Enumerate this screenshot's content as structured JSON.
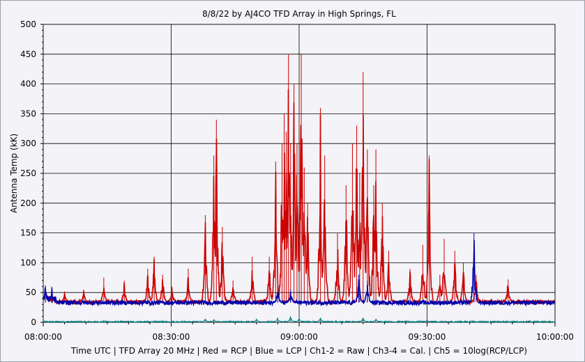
{
  "chart_data": {
    "type": "line",
    "title": "8/8/22  by  AJ4CO TFD Array  in  High Springs, FL",
    "ylabel": "Antenna Temp (kK)",
    "xlabel": "Time UTC | TFD Array 20 MHz | Red = RCP | Blue = LCP | Ch1-2 = Raw | Ch3-4 = Cal. | Ch5 = 10log(RCP/LCP)",
    "ylim": [
      0,
      500
    ],
    "yticks": [
      "0",
      "50",
      "100",
      "150",
      "200",
      "250",
      "300",
      "350",
      "400",
      "450",
      "500"
    ],
    "xlim_minutes": [
      0,
      120
    ],
    "xticks": [
      "08:00:00",
      "08:30:00",
      "09:00:00",
      "09:30:00",
      "10:00:00"
    ],
    "grid": true,
    "background": "#f4f3f7",
    "colors": {
      "rcp": "#cc0000",
      "lcp": "#0000aa",
      "ratio": "#008080",
      "grid": "#000000"
    },
    "series": [
      {
        "name": "Red = RCP",
        "color": "#cc0000",
        "baseline": 34,
        "spikes": [
          [
            0.5,
            60
          ],
          [
            5.0,
            52
          ],
          [
            9.5,
            55
          ],
          [
            14.2,
            75
          ],
          [
            19.0,
            70
          ],
          [
            24.5,
            90
          ],
          [
            26.0,
            110
          ],
          [
            28.0,
            80
          ],
          [
            30.2,
            60
          ],
          [
            34.0,
            90
          ],
          [
            38.0,
            180
          ],
          [
            40.0,
            280
          ],
          [
            40.6,
            340
          ],
          [
            42.0,
            160
          ],
          [
            44.5,
            70
          ],
          [
            49.0,
            110
          ],
          [
            53.0,
            110
          ],
          [
            54.5,
            270
          ],
          [
            56.0,
            300
          ],
          [
            56.5,
            350
          ],
          [
            57.0,
            320
          ],
          [
            57.5,
            450
          ],
          [
            58.0,
            300
          ],
          [
            58.8,
            400
          ],
          [
            59.5,
            300
          ],
          [
            60.5,
            450
          ],
          [
            61.2,
            260
          ],
          [
            62.0,
            200
          ],
          [
            65.0,
            360
          ],
          [
            66.0,
            280
          ],
          [
            69.0,
            150
          ],
          [
            71.0,
            230
          ],
          [
            72.5,
            300
          ],
          [
            73.5,
            330
          ],
          [
            74.2,
            250
          ],
          [
            75.0,
            420
          ],
          [
            76.0,
            290
          ],
          [
            77.5,
            230
          ],
          [
            78.0,
            290
          ],
          [
            79.5,
            200
          ],
          [
            81.0,
            120
          ],
          [
            86.0,
            90
          ],
          [
            89.0,
            130
          ],
          [
            90.5,
            280
          ],
          [
            93.0,
            80
          ],
          [
            94.0,
            140
          ],
          [
            96.5,
            120
          ],
          [
            98.5,
            100
          ],
          [
            101.5,
            80
          ],
          [
            109.0,
            72
          ]
        ]
      },
      {
        "name": "Blue = LCP",
        "color": "#0000aa",
        "baseline": 33,
        "spikes": [
          [
            0.5,
            62
          ],
          [
            2.0,
            60
          ],
          [
            55.0,
            60
          ],
          [
            58.0,
            55
          ],
          [
            74.0,
            80
          ],
          [
            76.0,
            70
          ],
          [
            101.0,
            150
          ]
        ]
      },
      {
        "name": "Ch5 = 10log(RCP/LCP)",
        "color": "#008080",
        "baseline": 1,
        "spikes": [
          [
            38.0,
            6
          ],
          [
            40.0,
            5
          ],
          [
            50.0,
            6
          ],
          [
            55.0,
            8
          ],
          [
            58.0,
            10
          ],
          [
            60.0,
            7
          ],
          [
            65.0,
            8
          ],
          [
            75.0,
            8
          ],
          [
            78.0,
            6
          ],
          [
            90.0,
            4
          ]
        ]
      }
    ]
  }
}
